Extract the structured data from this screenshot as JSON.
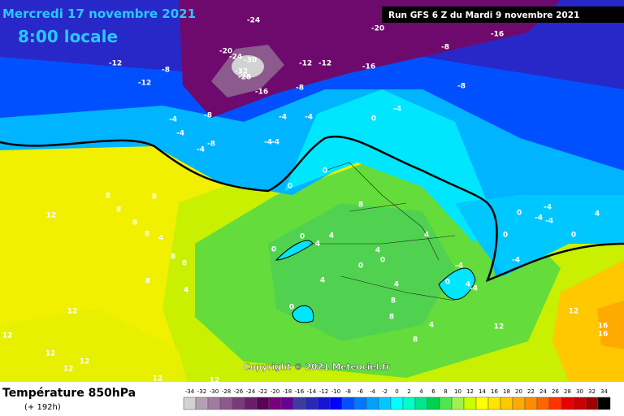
{
  "header": {
    "date": "Mercredi 17 novembre 2021",
    "time": "8:00 locale",
    "run": "Run GFS 6 Z du Mardi 9 novembre 2021"
  },
  "copyright": "Copyright © 2021 Meteociel.fr",
  "footer": {
    "title": "Température 850hPa",
    "lead": "(+ 192h)"
  },
  "legend": {
    "ticks": [
      -34,
      -32,
      -30,
      -28,
      -26,
      -24,
      -22,
      -20,
      -18,
      -16,
      -14,
      -12,
      -10,
      -8,
      -6,
      -4,
      -2,
      0,
      2,
      4,
      6,
      8,
      10,
      12,
      14,
      16,
      18,
      20,
      22,
      24,
      26,
      28,
      30,
      32,
      34
    ],
    "colors": [
      "#d2d2d2",
      "#b4a0b4",
      "#a07ca0",
      "#8c5a8c",
      "#7a3a7a",
      "#6a1e6a",
      "#5a005a",
      "#780078",
      "#640096",
      "#3c3ca0",
      "#2828b4",
      "#1414d2",
      "#0000ff",
      "#0050ff",
      "#0078ff",
      "#00a0ff",
      "#00c8ff",
      "#00ffff",
      "#00ffc8",
      "#00e68c",
      "#00d250",
      "#50e650",
      "#a0f050",
      "#c8ff00",
      "#ffff00",
      "#ffe600",
      "#ffc800",
      "#ffaa00",
      "#ff8c00",
      "#ff6400",
      "#ff3200",
      "#e60000",
      "#c80000",
      "#a00000",
      "#000000"
    ]
  },
  "contour_labels": [
    -24,
    -20,
    -16,
    -8,
    -20,
    -24,
    -30,
    -32,
    -28,
    -12,
    -8,
    -12,
    -12,
    -12,
    -16,
    -16,
    -8,
    -8,
    -4,
    -8,
    -4,
    -4,
    -4,
    0,
    -4,
    -8,
    -4,
    -4,
    -4,
    0,
    0,
    8,
    8,
    8,
    8,
    8,
    4,
    8,
    8,
    8,
    4,
    12,
    12,
    12,
    12,
    12,
    12,
    12,
    12,
    0,
    0,
    4,
    4,
    4,
    8,
    4,
    0,
    0,
    4,
    4,
    0,
    8,
    8,
    4,
    8,
    12,
    12,
    16,
    16,
    0,
    -4,
    -4,
    4,
    0,
    0,
    -4,
    -4,
    0,
    4,
    -4,
    -4
  ]
}
